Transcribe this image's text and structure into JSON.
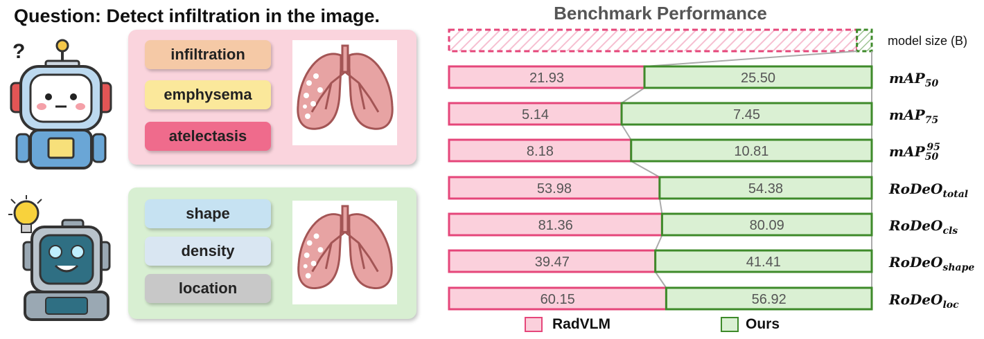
{
  "question": "Question: Detect infiltration in the image.",
  "top_panel": {
    "tags": [
      "infiltration",
      "emphysema",
      "atelectasis"
    ],
    "tag_colors": [
      "#f5c9a6",
      "#fbe89b",
      "#ef6b8c"
    ]
  },
  "bottom_panel": {
    "tags": [
      "shape",
      "density",
      "location"
    ],
    "tag_colors": [
      "#c6e2f2",
      "#d9e6f2",
      "#c8c8c8"
    ]
  },
  "robot_thinking_glyph": "?",
  "colors": {
    "radvlm_fill": "#fbd0dc",
    "radvlm_edge": "#e5467a",
    "ours_fill": "#daf0d3",
    "ours_edge": "#3e8a2a"
  },
  "chart_data": {
    "type": "bar",
    "orientation": "horizontal-stacked-comparison",
    "title": "Benchmark Performance",
    "series": [
      {
        "name": "RadVLM"
      },
      {
        "name": "Ours"
      }
    ],
    "size_row": {
      "label": "model size (B)"
    },
    "rows": [
      {
        "label_base": "mAP",
        "label_sub": "50",
        "label_sup": "",
        "radvlm": 21.93,
        "ours": 25.5,
        "radvlm_text": "21.93",
        "ours_text": "25.50"
      },
      {
        "label_base": "mAP",
        "label_sub": "75",
        "label_sup": "",
        "radvlm": 5.14,
        "ours": 7.45,
        "radvlm_text": "5.14",
        "ours_text": "7.45"
      },
      {
        "label_base": "mAP",
        "label_sub": "50",
        "label_sup": "95",
        "radvlm": 8.18,
        "ours": 10.81,
        "radvlm_text": "8.18",
        "ours_text": "10.81"
      },
      {
        "label_base": "RoDeO",
        "label_sub": "total",
        "label_sup": "",
        "radvlm": 53.98,
        "ours": 54.38,
        "radvlm_text": "53.98",
        "ours_text": "54.38"
      },
      {
        "label_base": "RoDeO",
        "label_sub": "cls",
        "label_sup": "",
        "radvlm": 81.36,
        "ours": 80.09,
        "radvlm_text": "81.36",
        "ours_text": "80.09"
      },
      {
        "label_base": "RoDeO",
        "label_sub": "shape",
        "label_sup": "",
        "radvlm": 39.47,
        "ours": 41.41,
        "radvlm_text": "39.47",
        "ours_text": "41.41"
      },
      {
        "label_base": "RoDeO",
        "label_sub": "loc",
        "label_sup": "",
        "radvlm": 60.15,
        "ours": 56.92,
        "radvlm_text": "60.15",
        "ours_text": "56.92"
      }
    ]
  }
}
